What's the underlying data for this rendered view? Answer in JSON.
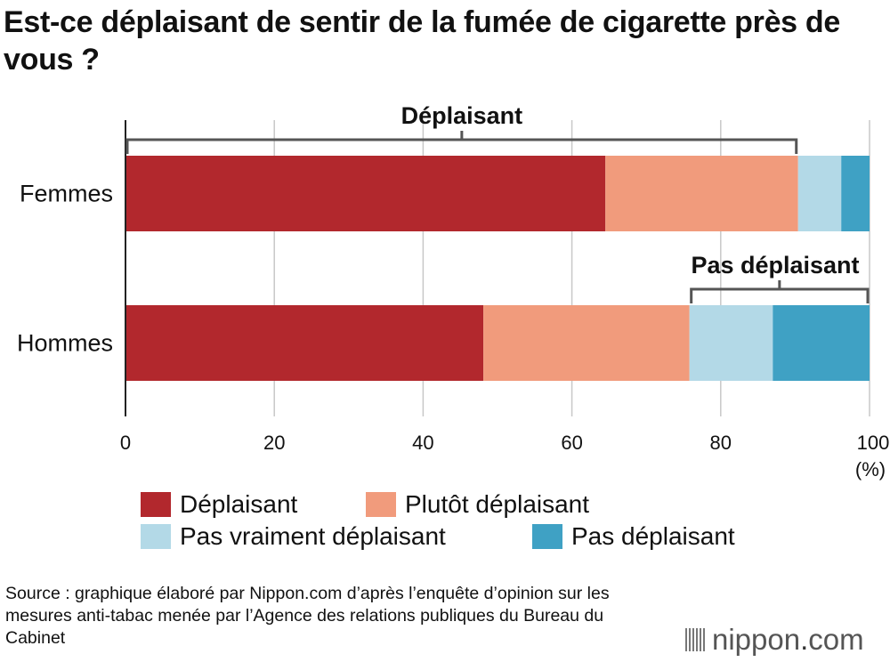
{
  "title": "Est-ce déplaisant de sentir de la fumée de cigarette près de vous ?",
  "chart_data": {
    "type": "bar",
    "orientation": "horizontal",
    "stacked": true,
    "categories": [
      "Femmes",
      "Hommes"
    ],
    "series": [
      {
        "name": "Déplaisant",
        "color": "#b2282d",
        "values": [
          64.5,
          48.1
        ]
      },
      {
        "name": "Plutôt déplaisant",
        "color": "#f19b7c",
        "values": [
          25.9,
          27.7
        ]
      },
      {
        "name": "Pas vraiment déplaisant",
        "color": "#b3d9e7",
        "values": [
          5.8,
          11.2
        ]
      },
      {
        "name": "Pas déplaisant",
        "color": "#3fa1c4",
        "values": [
          3.8,
          13.0
        ]
      }
    ],
    "xlim": [
      0,
      100
    ],
    "xticks": [
      "0",
      "20",
      "40",
      "60",
      "80",
      "100"
    ],
    "xunit": "(%)",
    "grid": true,
    "legend_position": "bottom",
    "annotations": [
      {
        "label": "Déplaisant",
        "category": "Femmes",
        "from": 0,
        "to": 90.4
      },
      {
        "label": "Pas déplaisant",
        "category": "Hommes",
        "from": 75.8,
        "to": 100
      }
    ]
  },
  "source": "Source : graphique élaboré par Nippon.com d’après l’enquête d’opinion sur les mesures anti-tabac menée par l’Agence des relations publiques du Bureau du Cabinet",
  "logo": {
    "name": "nippon",
    "dot": ".",
    "tld": "com"
  }
}
